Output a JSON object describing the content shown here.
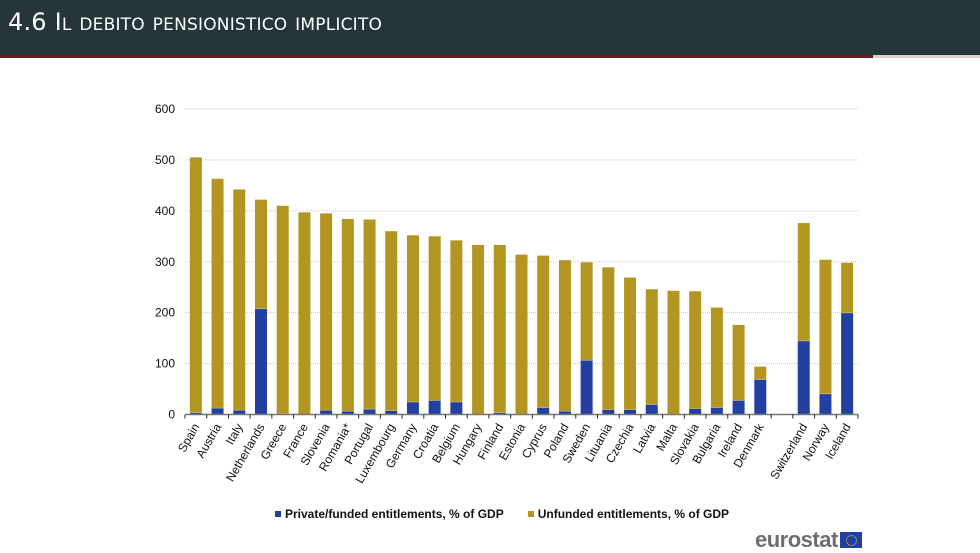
{
  "header": {
    "title": "4.6 Il debito pensionistico implicito"
  },
  "colors": {
    "header_bg": "#24363a",
    "accent_red": "#6b1b1b",
    "funded": "#2340a0",
    "unfunded": "#b39521"
  },
  "chart_data": {
    "type": "bar",
    "stacked": true,
    "title": "",
    "xlabel": "",
    "ylabel": "",
    "ylim": [
      0,
      600
    ],
    "yticks": [
      0,
      100,
      200,
      300,
      400,
      500,
      600
    ],
    "grid": true,
    "legend_position": "bottom",
    "categories": [
      "Spain",
      "Austria",
      "Italy",
      "Netherlands",
      "Greece",
      "France",
      "Slovenia",
      "Romania*",
      "Portugal",
      "Luxembourg",
      "Germany",
      "Croatia",
      "Belgium",
      "Hungary",
      "Finland",
      "Estonia",
      "Cyprus",
      "Poland",
      "Sweden",
      "Lituania",
      "Czechia",
      "Latvia",
      "Malta",
      "Slovakia",
      "Bulgaria",
      "Ireland",
      "Denmark",
      "",
      "Switzerland",
      "Norway",
      "Iceland"
    ],
    "series": [
      {
        "name": "Private/funded entitlements, % of GDP",
        "color": "#2340a0",
        "values": [
          4,
          13,
          9,
          208,
          2,
          0,
          9,
          7,
          11,
          8,
          25,
          28,
          25,
          0,
          4,
          0,
          14,
          7,
          107,
          10,
          10,
          20,
          0,
          12,
          14,
          28,
          69,
          null,
          145,
          41,
          200
        ]
      },
      {
        "name": "Unfunded entitlements, % of GDP",
        "color": "#b39521",
        "values": [
          501,
          450,
          433,
          214,
          408,
          397,
          386,
          377,
          372,
          352,
          327,
          322,
          317,
          333,
          329,
          314,
          298,
          296,
          192,
          279,
          259,
          226,
          243,
          230,
          196,
          148,
          25,
          null,
          231,
          263,
          98
        ]
      }
    ]
  },
  "legend": {
    "funded_label": "Private/funded entitlements, % of GDP",
    "unfunded_label": "Unfunded entitlements, % of GDP"
  },
  "logo": {
    "text": "eurostat",
    "flag_icon": "eu-flag-icon"
  }
}
